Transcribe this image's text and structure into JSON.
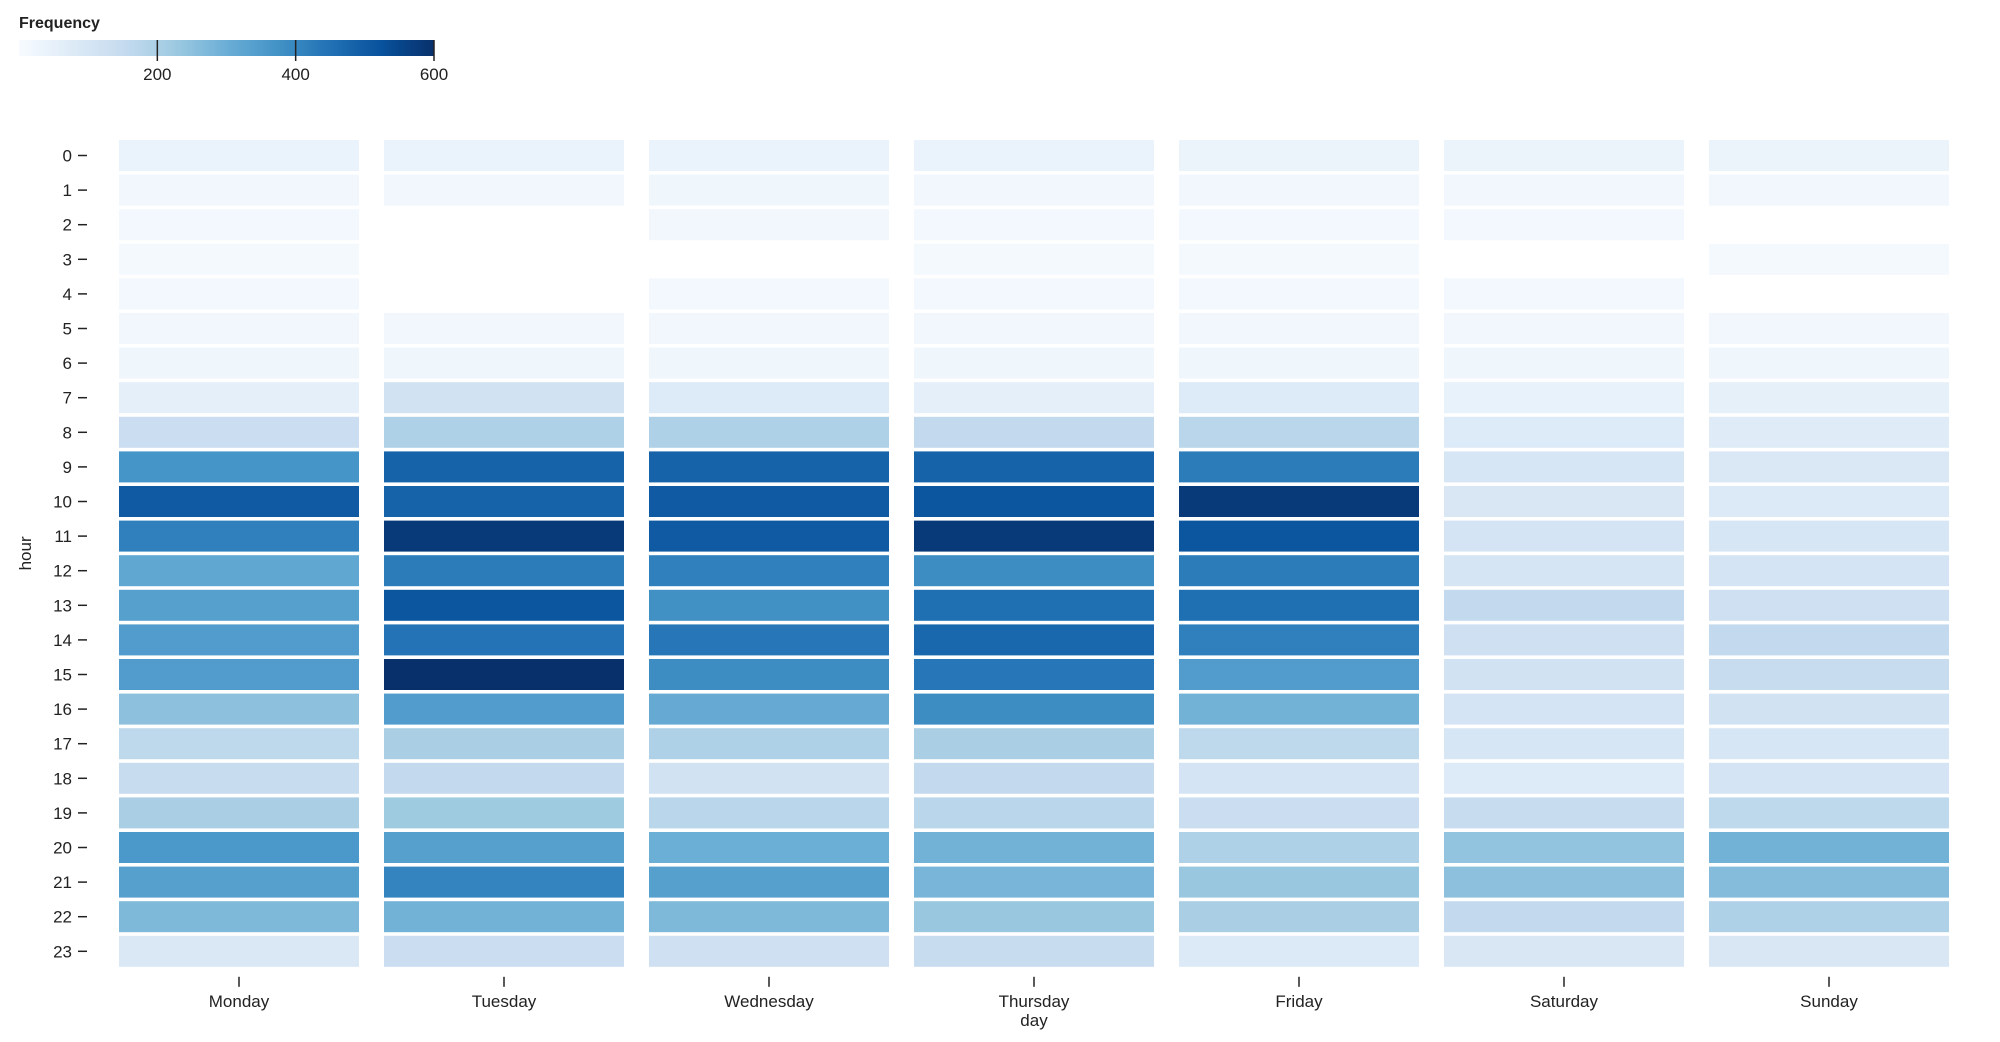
{
  "chart_data": {
    "type": "heatmap",
    "title": "",
    "xlabel": "day",
    "ylabel": "hour",
    "x_categories": [
      "Monday",
      "Tuesday",
      "Wednesday",
      "Thursday",
      "Friday",
      "Saturday",
      "Sunday"
    ],
    "y_categories": [
      "0",
      "1",
      "2",
      "3",
      "4",
      "5",
      "6",
      "7",
      "8",
      "9",
      "10",
      "11",
      "12",
      "13",
      "14",
      "15",
      "16",
      "17",
      "18",
      "19",
      "20",
      "21",
      "22",
      "23"
    ],
    "values": [
      [
        40,
        40,
        40,
        40,
        35,
        35,
        35
      ],
      [
        20,
        20,
        25,
        20,
        20,
        20,
        20
      ],
      [
        15,
        null,
        20,
        15,
        15,
        15,
        null
      ],
      [
        10,
        null,
        null,
        10,
        10,
        null,
        10
      ],
      [
        15,
        null,
        15,
        15,
        15,
        15,
        null
      ],
      [
        20,
        20,
        20,
        20,
        20,
        20,
        20
      ],
      [
        25,
        25,
        25,
        25,
        25,
        25,
        25
      ],
      [
        60,
        120,
        80,
        60,
        80,
        45,
        55
      ],
      [
        140,
        200,
        200,
        160,
        180,
        80,
        75
      ],
      [
        380,
        500,
        500,
        500,
        440,
        100,
        90
      ],
      [
        520,
        500,
        520,
        530,
        600,
        95,
        85
      ],
      [
        430,
        600,
        520,
        600,
        530,
        110,
        100
      ],
      [
        330,
        440,
        430,
        400,
        440,
        105,
        110
      ],
      [
        350,
        530,
        390,
        470,
        470,
        160,
        130
      ],
      [
        360,
        460,
        450,
        490,
        430,
        130,
        160
      ],
      [
        360,
        620,
        400,
        450,
        360,
        120,
        150
      ],
      [
        260,
        360,
        320,
        400,
        300,
        110,
        120
      ],
      [
        170,
        210,
        200,
        210,
        170,
        100,
        100
      ],
      [
        150,
        160,
        120,
        160,
        110,
        80,
        110
      ],
      [
        210,
        230,
        180,
        180,
        140,
        150,
        170
      ],
      [
        370,
        350,
        310,
        300,
        200,
        250,
        300
      ],
      [
        350,
        420,
        350,
        290,
        240,
        260,
        270
      ],
      [
        280,
        300,
        280,
        240,
        210,
        160,
        200
      ],
      [
        90,
        140,
        130,
        150,
        85,
        95,
        95
      ]
    ],
    "color_scale": {
      "scheme": "Blues",
      "domain": [
        0,
        620
      ],
      "colors": [
        "#f7fbff",
        "#deebf7",
        "#c6dbef",
        "#9ecae1",
        "#6baed6",
        "#4292c6",
        "#2171b5",
        "#08519c",
        "#08306b"
      ]
    },
    "legend": {
      "title": "Frequency",
      "ticks": [
        "200",
        "400",
        "600"
      ],
      "placement": "top-left"
    }
  }
}
